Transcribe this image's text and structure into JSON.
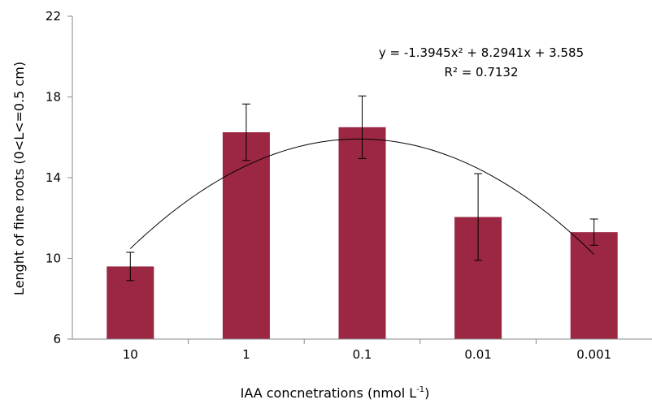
{
  "chart_data": {
    "type": "bar",
    "categories": [
      "10",
      "1",
      "0.1",
      "0.01",
      "0.001"
    ],
    "values": [
      9.6,
      16.25,
      16.5,
      12.05,
      11.3
    ],
    "error_bars": [
      0.7,
      1.4,
      1.55,
      2.15,
      0.65
    ],
    "ylim": [
      6,
      22
    ],
    "yticks": [
      "6",
      "10",
      "14",
      "18",
      "22"
    ],
    "ylabel": "Lenght of fine roots (0<L<=0.5 cm)",
    "xlabel_main": "IAA concnetrations (nmol L",
    "xlabel_sup": "-1",
    "xlabel_tail": ")",
    "trendline": {
      "type": "polynomial",
      "a": -1.3945,
      "b": 8.2941,
      "c": 3.585,
      "equation": "y = -1.3945x² + 8.2941x + 3.585",
      "r2": "R² = 0.7132"
    },
    "grid": false,
    "legend": "none",
    "colors": {
      "bar": "#9b2743",
      "axis": "#888888",
      "line": "#000000"
    }
  }
}
